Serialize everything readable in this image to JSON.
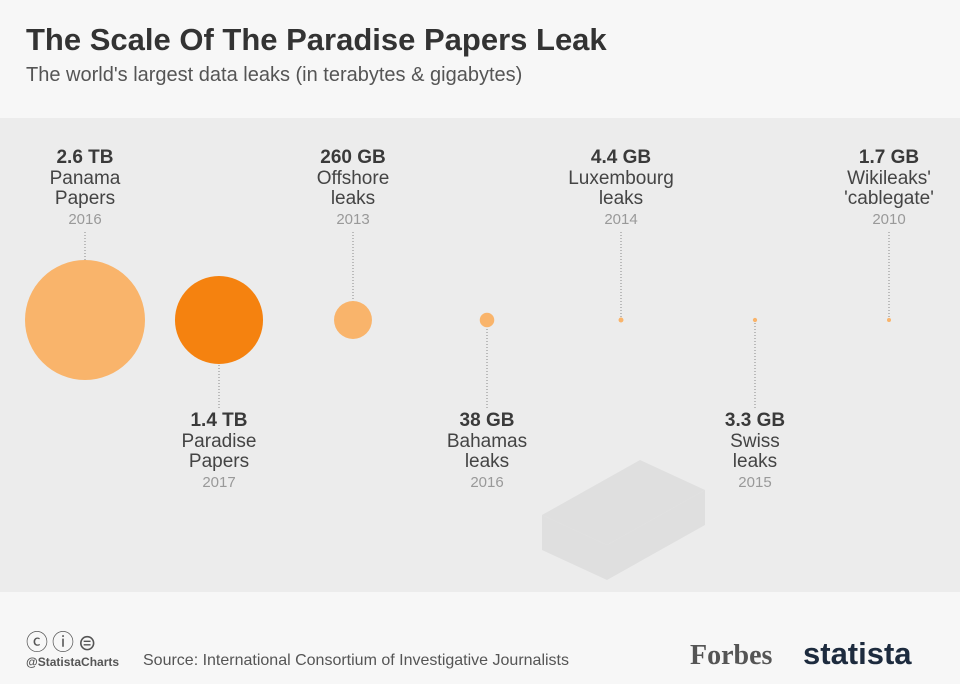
{
  "chart_data": {
    "type": "bubble",
    "title": "The Scale Of The Paradise Papers Leak",
    "subtitle": "The world's largest data leaks (in terabytes & gigabytes)",
    "categories": [
      "Panama Papers",
      "Paradise Papers",
      "Offshore leaks",
      "Bahamas leaks",
      "Luxembourg leaks",
      "Swiss leaks",
      "Wikileaks' 'cablegate'"
    ],
    "years": [
      "2016",
      "2017",
      "2013",
      "2016",
      "2014",
      "2015",
      "2010"
    ],
    "values": [
      2600,
      1400,
      260,
      38,
      4.4,
      3.3,
      1.7
    ],
    "value_labels": [
      "2.6 TB",
      "1.4 TB",
      "260 GB",
      "38 GB",
      "4.4 GB",
      "3.3 GB",
      "1.7 GB"
    ],
    "colors": [
      "#f9b46b",
      "#f5820f",
      "#f9b46b",
      "#f9b46b",
      "#f9b46b",
      "#f9b46b",
      "#f9b46b"
    ]
  },
  "footer": {
    "handle": "@StatistaCharts",
    "source": "Source: International Consortium of Investigative Journalists",
    "brands": [
      "Forbes",
      "statista"
    ]
  }
}
